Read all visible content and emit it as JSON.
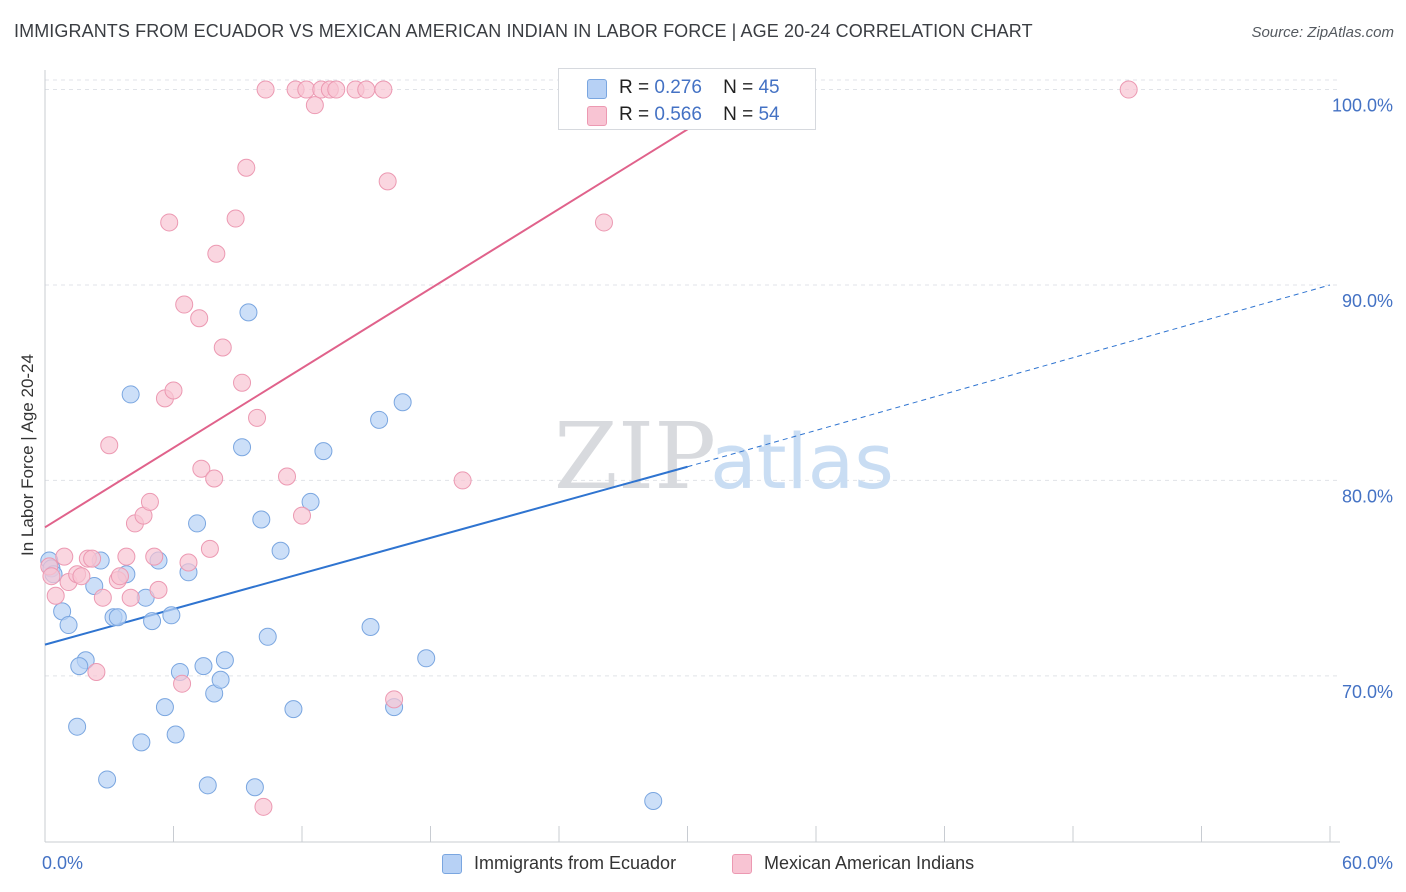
{
  "header": {
    "title": "IMMIGRANTS FROM ECUADOR VS MEXICAN AMERICAN INDIAN IN LABOR FORCE | AGE 20-24 CORRELATION CHART",
    "source": "Source: ZipAtlas.com"
  },
  "watermark": {
    "zip": "ZIP",
    "atlas": "atlas"
  },
  "legend": {
    "items": [
      {
        "r_label": "R =",
        "r_value": "0.276",
        "n_label": "N =",
        "n_value": "45"
      },
      {
        "r_label": "R =",
        "r_value": "0.566",
        "n_label": "N =",
        "n_value": "54"
      }
    ]
  },
  "colors": {
    "blue_fill": "#b7d1f5",
    "blue_stroke": "#7aa6e0",
    "blue_line": "#2f74d0",
    "pink_fill": "#f8c4d3",
    "pink_stroke": "#ec99b2",
    "pink_line": "#e0628b",
    "grid": "#e0e3e8",
    "tick_label": "#4472c4"
  },
  "chart_data": {
    "type": "scatter",
    "title": "IMMIGRANTS FROM ECUADOR VS MEXICAN AMERICAN INDIAN IN LABOR FORCE | AGE 20-24 CORRELATION CHART",
    "xlabel": "",
    "ylabel": "In Labor Force | Age 20-24",
    "xlim": [
      0,
      60
    ],
    "ylim": [
      61.5,
      101
    ],
    "x_tick_labels": [
      "0.0%",
      "60.0%"
    ],
    "y_ticks": [
      70,
      80,
      90,
      100
    ],
    "y_tick_labels": [
      "70.0%",
      "80.0%",
      "90.0%",
      "100.0%"
    ],
    "grid": true,
    "legend_position": "top-center",
    "series": [
      {
        "name": "Immigrants from Ecuador",
        "color": "#b7d1f5",
        "trend": {
          "x0": 0,
          "y0": 71.6,
          "x1": 30,
          "y1": 80.7,
          "dashed_to_x": 60,
          "dashed_to_y": 90.0
        },
        "points": [
          [
            0.2,
            75.9
          ],
          [
            0.3,
            75.5
          ],
          [
            0.4,
            75.2
          ],
          [
            0.8,
            73.3
          ],
          [
            1.1,
            72.6
          ],
          [
            1.9,
            70.8
          ],
          [
            1.6,
            70.5
          ],
          [
            1.5,
            67.4
          ],
          [
            2.3,
            74.6
          ],
          [
            2.6,
            75.9
          ],
          [
            2.9,
            64.7
          ],
          [
            3.2,
            73.0
          ],
          [
            3.4,
            73.0
          ],
          [
            3.8,
            75.2
          ],
          [
            4.0,
            84.4
          ],
          [
            4.5,
            66.6
          ],
          [
            4.7,
            74.0
          ],
          [
            5.0,
            72.8
          ],
          [
            5.3,
            75.9
          ],
          [
            5.6,
            68.4
          ],
          [
            5.9,
            73.1
          ],
          [
            6.1,
            67.0
          ],
          [
            6.3,
            70.2
          ],
          [
            6.7,
            75.3
          ],
          [
            7.1,
            77.8
          ],
          [
            7.4,
            70.5
          ],
          [
            7.6,
            64.4
          ],
          [
            7.9,
            69.1
          ],
          [
            8.2,
            69.8
          ],
          [
            8.4,
            70.8
          ],
          [
            9.2,
            81.7
          ],
          [
            9.5,
            88.6
          ],
          [
            9.8,
            64.3
          ],
          [
            10.1,
            78.0
          ],
          [
            10.4,
            72.0
          ],
          [
            11.0,
            76.4
          ],
          [
            11.6,
            68.3
          ],
          [
            12.4,
            78.9
          ],
          [
            13.0,
            81.5
          ],
          [
            15.2,
            72.5
          ],
          [
            15.6,
            83.1
          ],
          [
            16.3,
            68.4
          ],
          [
            16.7,
            84.0
          ],
          [
            17.8,
            70.9
          ],
          [
            28.4,
            63.6
          ]
        ]
      },
      {
        "name": "Mexican American Indians",
        "color": "#f8c4d3",
        "trend": {
          "x0": 0,
          "y0": 77.6,
          "x1": 33,
          "y1": 100.0
        },
        "points": [
          [
            0.2,
            75.6
          ],
          [
            0.3,
            75.1
          ],
          [
            0.5,
            74.1
          ],
          [
            0.9,
            76.1
          ],
          [
            1.1,
            74.8
          ],
          [
            1.5,
            75.2
          ],
          [
            1.7,
            75.1
          ],
          [
            2.0,
            76.0
          ],
          [
            2.2,
            76.0
          ],
          [
            2.4,
            70.2
          ],
          [
            2.7,
            74.0
          ],
          [
            3.0,
            81.8
          ],
          [
            3.4,
            74.9
          ],
          [
            3.5,
            75.1
          ],
          [
            3.8,
            76.1
          ],
          [
            4.0,
            74.0
          ],
          [
            4.2,
            77.8
          ],
          [
            4.6,
            78.2
          ],
          [
            4.9,
            78.9
          ],
          [
            5.1,
            76.1
          ],
          [
            5.3,
            74.4
          ],
          [
            5.6,
            84.2
          ],
          [
            5.8,
            93.2
          ],
          [
            6.0,
            84.6
          ],
          [
            6.4,
            69.6
          ],
          [
            6.5,
            89.0
          ],
          [
            6.7,
            75.8
          ],
          [
            7.2,
            88.3
          ],
          [
            7.3,
            80.6
          ],
          [
            7.7,
            76.5
          ],
          [
            7.9,
            80.1
          ],
          [
            8.0,
            91.6
          ],
          [
            8.3,
            86.8
          ],
          [
            8.9,
            93.4
          ],
          [
            9.2,
            85.0
          ],
          [
            9.4,
            96.0
          ],
          [
            9.9,
            83.2
          ],
          [
            10.2,
            63.3
          ],
          [
            10.3,
            100.0
          ],
          [
            11.3,
            80.2
          ],
          [
            11.7,
            100.0
          ],
          [
            12.0,
            78.2
          ],
          [
            12.2,
            100.0
          ],
          [
            12.6,
            99.2
          ],
          [
            12.9,
            100.0
          ],
          [
            13.3,
            100.0
          ],
          [
            13.6,
            100.0
          ],
          [
            14.5,
            100.0
          ],
          [
            15.0,
            100.0
          ],
          [
            15.8,
            100.0
          ],
          [
            16.0,
            95.3
          ],
          [
            16.3,
            68.8
          ],
          [
            19.5,
            80.0
          ],
          [
            26.1,
            93.2
          ],
          [
            50.6,
            100.0
          ]
        ]
      }
    ]
  },
  "bottom_legend": [
    "Immigrants from Ecuador",
    "Mexican American Indians"
  ]
}
